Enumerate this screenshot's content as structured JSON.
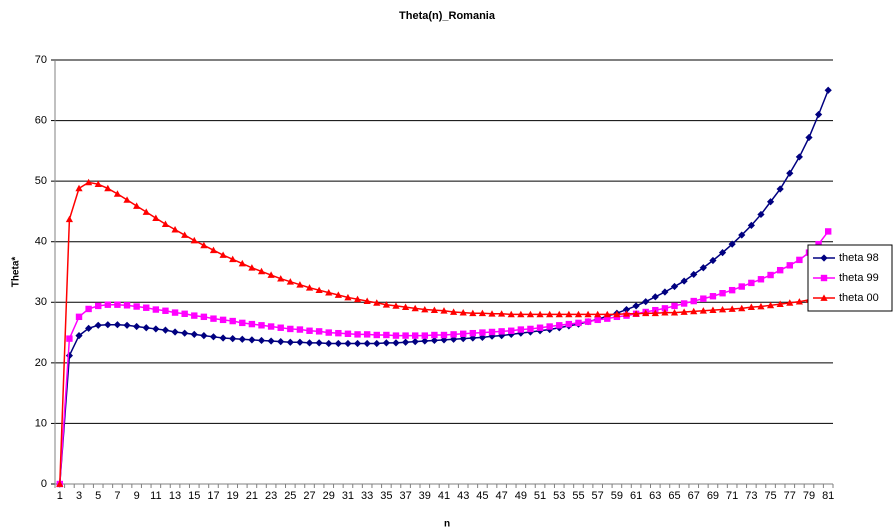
{
  "chart_data": {
    "type": "line",
    "title": "Theta(n)_Romania",
    "x_label": "n",
    "y_label": "Theta*",
    "categories": [
      1,
      null,
      3,
      null,
      5,
      null,
      7,
      null,
      9,
      null,
      11,
      null,
      13,
      null,
      15,
      null,
      17,
      null,
      19,
      null,
      21,
      null,
      23,
      null,
      25,
      null,
      27,
      null,
      29,
      null,
      31,
      null,
      33,
      null,
      35,
      null,
      37,
      null,
      39,
      null,
      41,
      null,
      43,
      null,
      45,
      null,
      47,
      null,
      49,
      null,
      51,
      null,
      53,
      null,
      55,
      null,
      57,
      null,
      59,
      null,
      61,
      null,
      63,
      null,
      65,
      null,
      67,
      null,
      69,
      null,
      71,
      null,
      73,
      null,
      75,
      null,
      77,
      null,
      79,
      null,
      81
    ],
    "ylim": [
      0,
      70
    ],
    "yticks": [
      0,
      10,
      20,
      30,
      40,
      50,
      60,
      70
    ],
    "grid": true,
    "legend": "right",
    "series": [
      {
        "name": "theta 98",
        "color": "#000080",
        "marker": "diamond",
        "values": [
          0,
          21.2,
          24.5,
          25.7,
          26.2,
          26.3,
          26.3,
          26.2,
          26.0,
          25.8,
          25.6,
          25.4,
          25.1,
          24.9,
          24.7,
          24.5,
          24.3,
          24.1,
          24.0,
          23.9,
          23.8,
          23.7,
          23.6,
          23.5,
          23.4,
          23.4,
          23.3,
          23.3,
          23.2,
          23.2,
          23.2,
          23.2,
          23.2,
          23.2,
          23.3,
          23.3,
          23.4,
          23.5,
          23.6,
          23.7,
          23.8,
          23.9,
          24.0,
          24.1,
          24.2,
          24.4,
          24.5,
          24.7,
          24.9,
          25.1,
          25.3,
          25.5,
          25.8,
          26.1,
          26.4,
          26.8,
          27.2,
          27.7,
          28.2,
          28.8,
          29.4,
          30.1,
          30.9,
          31.7,
          32.6,
          33.5,
          34.6,
          35.7,
          36.9,
          38.2,
          39.6,
          41.1,
          42.7,
          44.5,
          46.6,
          48.7,
          51.3,
          54.0,
          57.2,
          61.0,
          65.0
        ]
      },
      {
        "name": "theta 99",
        "color": "#ff00ff",
        "marker": "square",
        "values": [
          0,
          24.0,
          27.6,
          28.9,
          29.4,
          29.6,
          29.6,
          29.5,
          29.3,
          29.1,
          28.8,
          28.6,
          28.3,
          28.1,
          27.8,
          27.6,
          27.3,
          27.1,
          26.9,
          26.6,
          26.4,
          26.2,
          26.0,
          25.8,
          25.6,
          25.5,
          25.3,
          25.2,
          25.0,
          24.9,
          24.8,
          24.7,
          24.7,
          24.6,
          24.6,
          24.5,
          24.5,
          24.5,
          24.5,
          24.6,
          24.6,
          24.7,
          24.8,
          24.9,
          25.0,
          25.1,
          25.2,
          25.3,
          25.5,
          25.6,
          25.8,
          26.0,
          26.2,
          26.4,
          26.6,
          26.8,
          27.1,
          27.3,
          27.6,
          27.8,
          28.1,
          28.4,
          28.7,
          29.0,
          29.4,
          29.8,
          30.2,
          30.6,
          31.0,
          31.5,
          32.0,
          32.6,
          33.2,
          33.8,
          34.5,
          35.3,
          36.1,
          37.0,
          38.2,
          39.6,
          41.7
        ]
      },
      {
        "name": "theta 00",
        "color": "#ff0000",
        "marker": "triangle",
        "values": [
          0,
          43.7,
          48.8,
          49.8,
          49.5,
          48.8,
          47.9,
          46.9,
          45.9,
          44.9,
          43.9,
          42.9,
          42.0,
          41.1,
          40.2,
          39.4,
          38.6,
          37.8,
          37.1,
          36.4,
          35.7,
          35.1,
          34.5,
          33.9,
          33.4,
          32.9,
          32.4,
          32.0,
          31.6,
          31.2,
          30.8,
          30.5,
          30.2,
          29.9,
          29.6,
          29.4,
          29.2,
          29.0,
          28.8,
          28.7,
          28.6,
          28.4,
          28.3,
          28.2,
          28.2,
          28.1,
          28.1,
          28.0,
          28.0,
          28.0,
          28.0,
          28.0,
          28.0,
          28.0,
          28.0,
          28.0,
          28.0,
          28.0,
          28.0,
          28.1,
          28.1,
          28.2,
          28.2,
          28.3,
          28.3,
          28.4,
          28.5,
          28.6,
          28.7,
          28.8,
          28.9,
          29.0,
          29.2,
          29.3,
          29.5,
          29.7,
          29.9,
          30.1,
          30.4,
          30.7,
          31.0
        ]
      }
    ]
  }
}
